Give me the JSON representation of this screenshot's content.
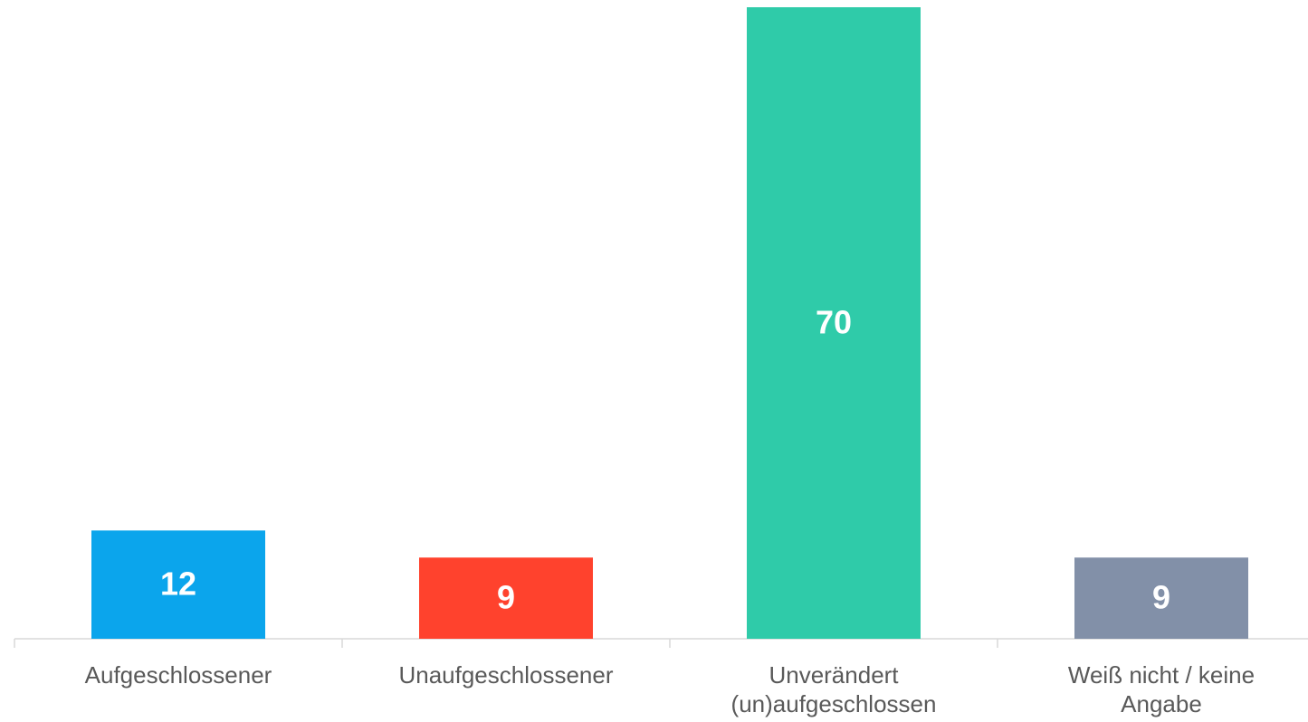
{
  "chart_data": {
    "type": "bar",
    "categories": [
      "Aufgeschlossener",
      "Unaufgeschlossener",
      "Unverändert (un)aufgeschlossen",
      "Weiß nicht / keine Angabe"
    ],
    "values": [
      12,
      9,
      70,
      9
    ],
    "colors": [
      "#0ba5ec",
      "#ff422d",
      "#2fcba9",
      "#8290a8"
    ],
    "ylim": [
      0,
      70
    ]
  }
}
